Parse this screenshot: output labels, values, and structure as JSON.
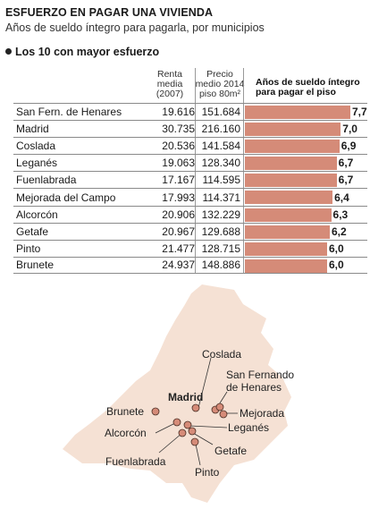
{
  "header": {
    "title": "ESFUERZO EN PAGAR UNA VIVIENDA",
    "subtitle": "Años de sueldo íntegro para pagarla, por municipios",
    "section": "Los 10 con mayor esfuerzo"
  },
  "columns": {
    "renta": [
      "Renta",
      "media",
      "(2007)"
    ],
    "precio": [
      "Precio",
      "medio 2014",
      "piso 80m²"
    ],
    "anos": [
      "Años de sueldo íntegro",
      "para pagar el piso"
    ]
  },
  "chart_data": {
    "type": "bar",
    "categories": [
      "San Fern. de Henares",
      "Madrid",
      "Coslada",
      "Leganés",
      "Fuenlabrada",
      "Mejorada del Campo",
      "Alcorcón",
      "Getafe",
      "Pinto",
      "Brunete"
    ],
    "renta": [
      "19.616",
      "30.735",
      "20.536",
      "19.063",
      "17.167",
      "17.993",
      "20.906",
      "20.967",
      "21.477",
      "24.937"
    ],
    "precio": [
      "151.684",
      "216.160",
      "141.584",
      "128.340",
      "114.595",
      "114.371",
      "132.229",
      "129.688",
      "128.715",
      "148.886"
    ],
    "values": [
      7.7,
      7.0,
      6.9,
      6.7,
      6.7,
      6.4,
      6.3,
      6.2,
      6.0,
      6.0
    ],
    "value_labels": [
      "7,7",
      "7,0",
      "6,9",
      "6,7",
      "6,7",
      "6,4",
      "6,3",
      "6,2",
      "6,0",
      "6,0"
    ],
    "bar_color": "#d58b78"
  },
  "map": {
    "land_color": "#f5e1d4",
    "dot_color": "#d58b78",
    "labels": {
      "madrid": "Madrid",
      "coslada": "Coslada",
      "sanfernando1": "San Fernando",
      "sanfernando2": "de Henares",
      "mejorada": "Mejorada",
      "brunete": "Brunete",
      "alcorcon": "Alcorcón",
      "leganes": "Leganés",
      "fuenlabrada": "Fuenlabrada",
      "getafe": "Getafe",
      "pinto": "Pinto"
    }
  }
}
